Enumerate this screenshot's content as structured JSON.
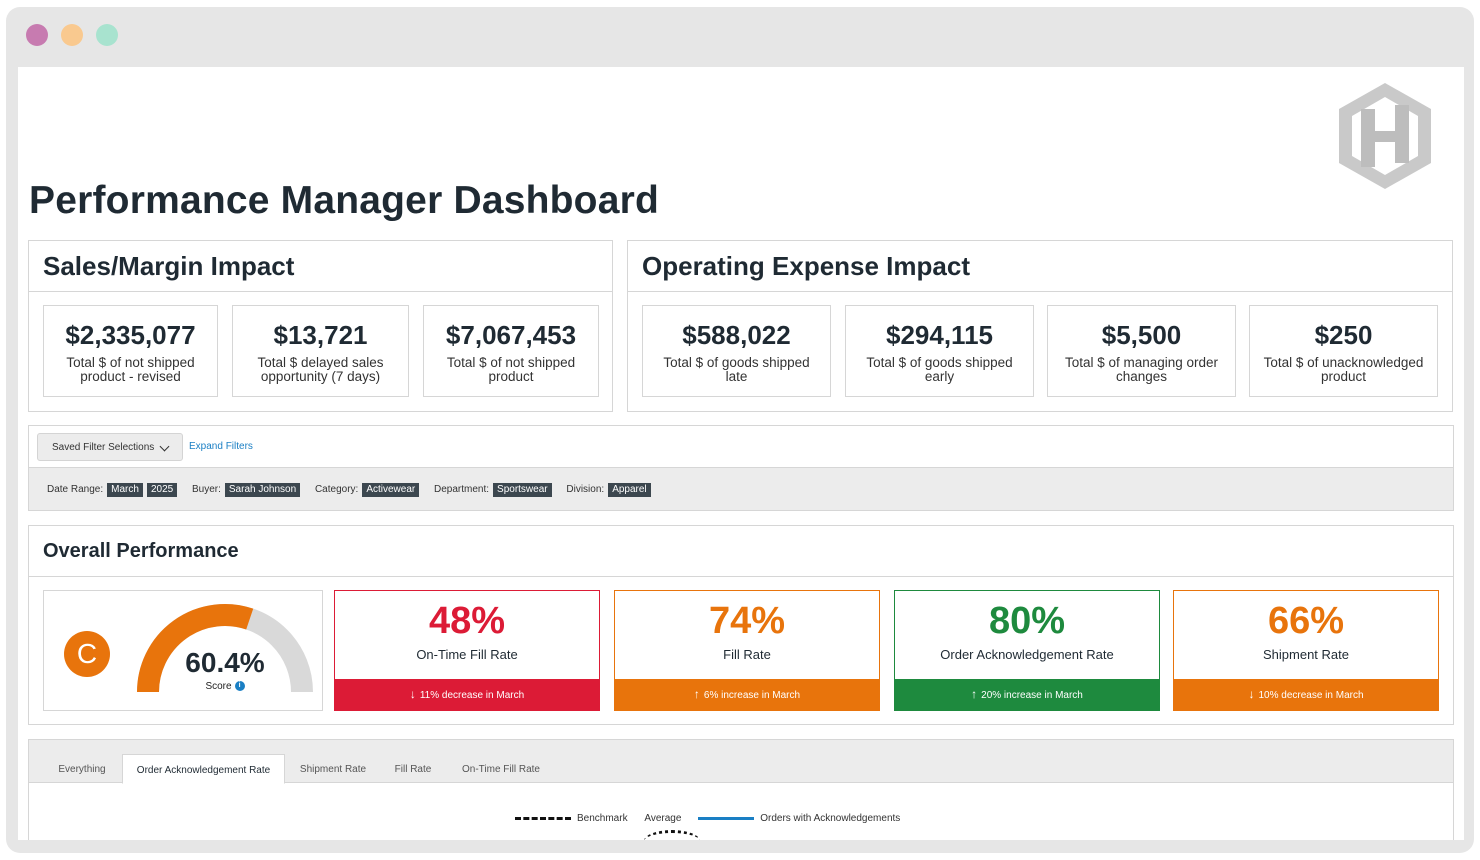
{
  "title": "Performance Manager Dashboard",
  "sales_margin": {
    "title": "Sales/Margin Impact",
    "kpis": [
      {
        "value": "$2,335,077",
        "label": "Total $ of not shipped product - revised"
      },
      {
        "value": "$13,721",
        "label": "Total $ delayed sales opportunity (7 days)"
      },
      {
        "value": "$7,067,453",
        "label": "Total $ of not shipped product"
      }
    ]
  },
  "operating_expense": {
    "title": "Operating Expense Impact",
    "kpis": [
      {
        "value": "$588,022",
        "label": "Total $ of goods shipped late"
      },
      {
        "value": "$294,115",
        "label": "Total $ of goods shipped early"
      },
      {
        "value": "$5,500",
        "label": "Total $ of managing order changes"
      },
      {
        "value": "$250",
        "label": "Total $ of unacknowledged product"
      }
    ]
  },
  "filters": {
    "saved_label": "Saved Filter Selections",
    "expand_label": "Expand Filters",
    "date_range_label": "Date Range:",
    "date_month": "March",
    "date_year": "2025",
    "buyer_label": "Buyer:",
    "buyer": "Sarah Johnson",
    "category_label": "Category:",
    "category": "Activewear",
    "department_label": "Department:",
    "department": "Sportswear",
    "division_label": "Division:",
    "division": "Apparel"
  },
  "overall": {
    "title": "Overall Performance",
    "grade": "C",
    "score": "60.4%",
    "score_fraction": 0.604,
    "score_label": "Score",
    "metrics": [
      {
        "value": "48%",
        "label": "On-Time Fill Rate",
        "trend": "11% decrease in March",
        "direction": "down",
        "color": "#dc1b36"
      },
      {
        "value": "74%",
        "label": "Fill Rate",
        "trend": "6% increase in March",
        "direction": "up",
        "color": "#e8740c"
      },
      {
        "value": "80%",
        "label": "Order Acknowledgement Rate",
        "trend": "20% increase in March",
        "direction": "up",
        "color": "#1e8a3e"
      },
      {
        "value": "66%",
        "label": "Shipment Rate",
        "trend": "10% decrease in March",
        "direction": "down",
        "color": "#e8740c"
      }
    ],
    "gauge_color": "#e8740c",
    "gauge_track_color": "#d9d9d9"
  },
  "tabs": {
    "items": [
      "Everything",
      "Order Acknowledgement Rate",
      "Shipment Rate",
      "Fill Rate",
      "On-Time Fill Rate"
    ],
    "active": "Order Acknowledgement Rate"
  },
  "legend": {
    "benchmark": "Benchmark",
    "average": "Average",
    "series": "Orders with Acknowledgements"
  }
}
